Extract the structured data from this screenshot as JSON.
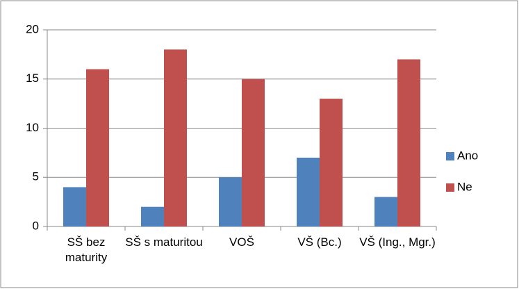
{
  "chart_data": {
    "type": "bar",
    "categories": [
      "SŠ bez maturity",
      "SŠ s maturitou",
      "VOŠ",
      "VŠ (Bc.)",
      "VŠ (Ing., Mgr.)"
    ],
    "series": [
      {
        "name": "Ano",
        "color": "#4f81bd",
        "values": [
          4,
          2,
          5,
          7,
          3
        ]
      },
      {
        "name": "Ne",
        "color": "#c0504d",
        "values": [
          16,
          18,
          15,
          13,
          17
        ]
      }
    ],
    "ylim": [
      0,
      20
    ],
    "yticks": [
      0,
      5,
      10,
      15,
      20
    ],
    "grid": true,
    "legend": "right"
  }
}
